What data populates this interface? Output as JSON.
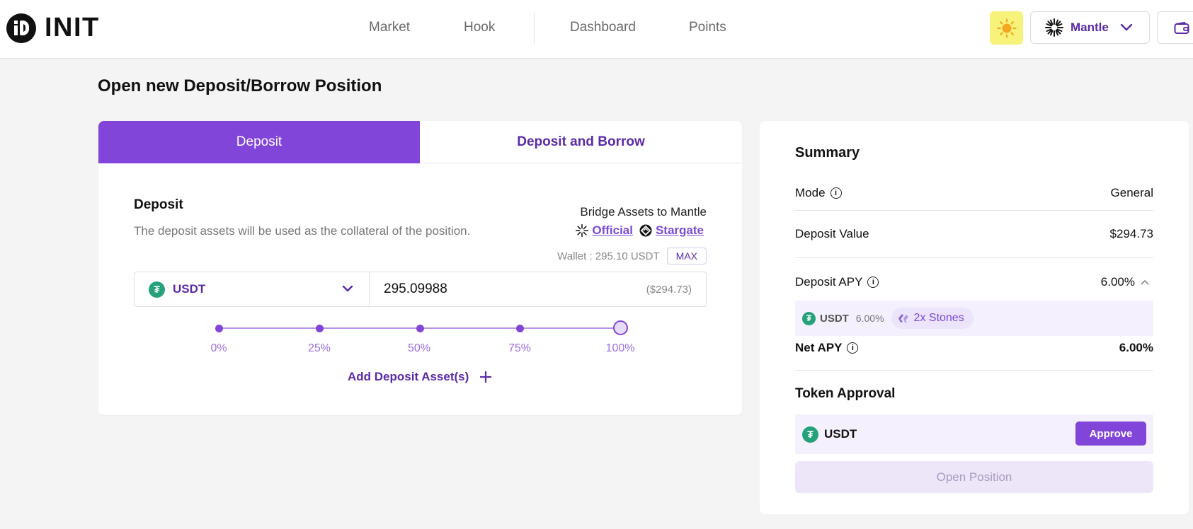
{
  "brand": {
    "name": "INIT"
  },
  "nav": {
    "items": [
      "Market",
      "Hook",
      "Dashboard",
      "Points"
    ]
  },
  "header": {
    "chain_label": "Mantle",
    "theme_icon": "sun-icon",
    "wallet_icon": "wallet-icon"
  },
  "page": {
    "title": "Open new Deposit/Borrow Position"
  },
  "tabs": [
    {
      "label": "Deposit",
      "active": true
    },
    {
      "label": "Deposit and Borrow",
      "active": false
    }
  ],
  "deposit": {
    "title": "Deposit",
    "description": "The deposit assets will be used as the collateral of the position.",
    "bridge_title": "Bridge Assets to Mantle",
    "bridge_links": [
      "Official",
      "Stargate"
    ],
    "wallet_text": "Wallet : 295.10 USDT",
    "max_label": "MAX",
    "token": "USDT",
    "amount": "295.09988",
    "amount_usd": "($294.73)",
    "slider_labels": [
      "0%",
      "25%",
      "50%",
      "75%",
      "100%"
    ],
    "slider_value": 1.0,
    "add_asset_label": "Add Deposit Asset(s)"
  },
  "summary": {
    "title": "Summary",
    "mode_label": "Mode",
    "mode_value": "General",
    "deposit_value_label": "Deposit Value",
    "deposit_value": "$294.73",
    "deposit_apy_label": "Deposit APY",
    "deposit_apy": "6.00%",
    "apy_detail": {
      "token": "USDT",
      "pct": "6.00%",
      "stones": "2x Stones"
    },
    "net_apy_label": "Net APY",
    "net_apy": "6.00%",
    "token_approval_title": "Token Approval",
    "approval_token": "USDT",
    "approve_label": "Approve",
    "open_position_label": "Open Position"
  },
  "colors": {
    "accent": "#8245d9",
    "accent_dark": "#5a2aa8",
    "tether": "#26a17b",
    "sun_bg": "#f7f27a"
  }
}
